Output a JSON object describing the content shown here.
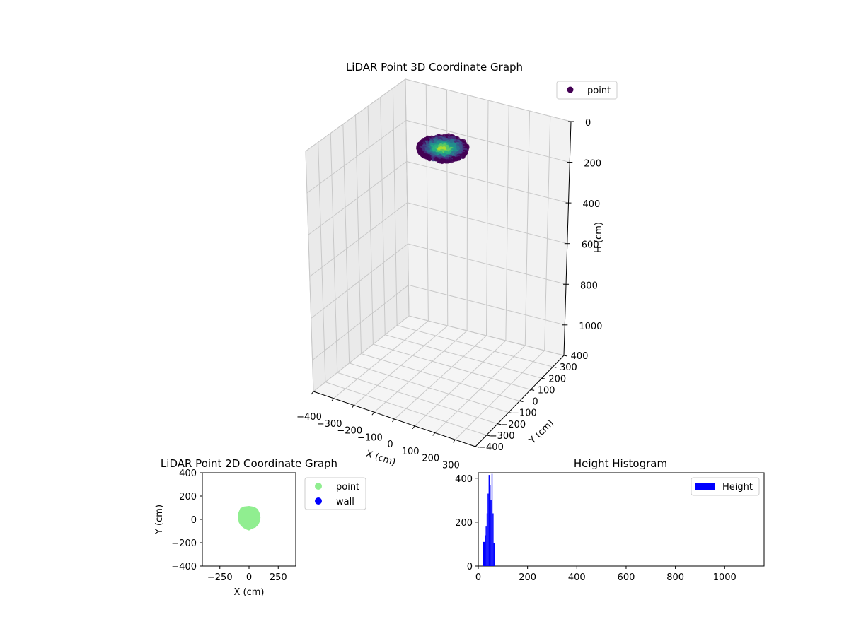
{
  "chart_data": [
    {
      "type": "scatter3d",
      "title": "LiDAR Point 3D Coordinate Graph",
      "xlabel": "X (cm)",
      "ylabel": "Y (cm)",
      "zlabel": "H (cm)",
      "xlim": [
        -400,
        400
      ],
      "ylim": [
        -400,
        400
      ],
      "zlim": [
        1150,
        0
      ],
      "z_inverted": true,
      "xticks": [
        -400,
        -300,
        -200,
        -100,
        0,
        100,
        200,
        300
      ],
      "yticks": [
        -400,
        -300,
        -200,
        -100,
        0,
        100,
        200,
        300,
        400
      ],
      "zticks": [
        0,
        200,
        400,
        600,
        800,
        1000
      ],
      "grid": true,
      "legend": {
        "position": "top-right",
        "entries": [
          {
            "name": "point",
            "color": "#440154"
          }
        ]
      },
      "colormap": "viridis",
      "cloud": {
        "x_range": [
          -100,
          120
        ],
        "y_range": [
          -100,
          110
        ],
        "h_range": [
          20,
          70
        ]
      }
    },
    {
      "type": "scatter",
      "title": "LiDAR Point 2D Coordinate Graph",
      "xlabel": "X (cm)",
      "ylabel": "Y (cm)",
      "xlim": [
        -400,
        400
      ],
      "ylim": [
        -400,
        400
      ],
      "xticks": [
        -250,
        0,
        250
      ],
      "yticks": [
        -400,
        -200,
        0,
        200,
        400
      ],
      "legend": {
        "position": "outside-right",
        "entries": [
          {
            "name": "point",
            "color": "#90ee90"
          },
          {
            "name": "wall",
            "color": "#0000ff"
          }
        ]
      },
      "point_outline": [
        [
          -95,
          20
        ],
        [
          -90,
          60
        ],
        [
          -75,
          95
        ],
        [
          -45,
          110
        ],
        [
          0,
          115
        ],
        [
          45,
          108
        ],
        [
          75,
          88
        ],
        [
          90,
          55
        ],
        [
          98,
          15
        ],
        [
          92,
          -20
        ],
        [
          80,
          -45
        ],
        [
          55,
          -70
        ],
        [
          25,
          -80
        ],
        [
          0,
          -95
        ],
        [
          -20,
          -88
        ],
        [
          -45,
          -75
        ],
        [
          -70,
          -55
        ],
        [
          -88,
          -25
        ]
      ]
    },
    {
      "type": "histogram",
      "title": "Height Histogram",
      "xlim": [
        0,
        1160
      ],
      "ylim": [
        0,
        425
      ],
      "xticks": [
        0,
        200,
        400,
        600,
        800,
        1000
      ],
      "yticks": [
        0,
        200,
        400
      ],
      "legend": {
        "position": "top-right",
        "entries": [
          {
            "name": "Height",
            "color": "#0000ff"
          }
        ]
      },
      "bins": [
        {
          "x0": 20,
          "x1": 26,
          "count": 110
        },
        {
          "x0": 26,
          "x1": 30,
          "count": 140
        },
        {
          "x0": 30,
          "x1": 34,
          "count": 180
        },
        {
          "x0": 34,
          "x1": 38,
          "count": 240
        },
        {
          "x0": 38,
          "x1": 42,
          "count": 330
        },
        {
          "x0": 42,
          "x1": 46,
          "count": 415
        },
        {
          "x0": 46,
          "x1": 50,
          "count": 370
        },
        {
          "x0": 50,
          "x1": 54,
          "count": 300
        },
        {
          "x0": 54,
          "x1": 58,
          "count": 420
        },
        {
          "x0": 58,
          "x1": 62,
          "count": 240
        },
        {
          "x0": 62,
          "x1": 66,
          "count": 105
        }
      ]
    }
  ]
}
